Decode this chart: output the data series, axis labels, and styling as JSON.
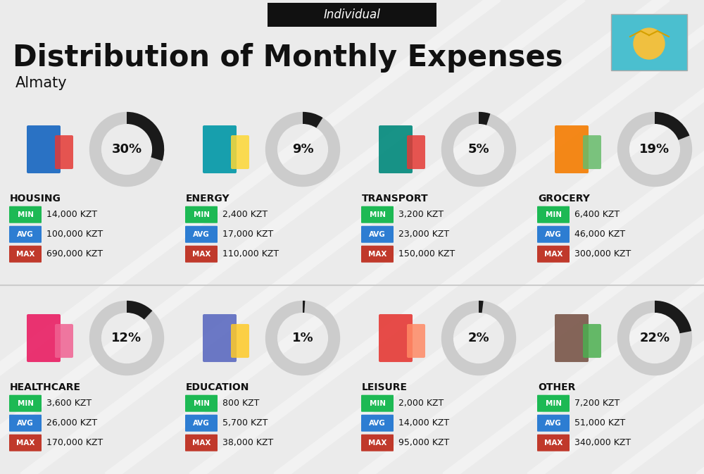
{
  "title": "Distribution of Monthly Expenses",
  "subtitle": "Individual",
  "city": "Almaty",
  "bg_color": "#ebebeb",
  "categories": [
    {
      "name": "HOUSING",
      "percent": 30,
      "min": "14,000 KZT",
      "avg": "100,000 KZT",
      "max": "690,000 KZT",
      "row": 0,
      "col": 0
    },
    {
      "name": "ENERGY",
      "percent": 9,
      "min": "2,400 KZT",
      "avg": "17,000 KZT",
      "max": "110,000 KZT",
      "row": 0,
      "col": 1
    },
    {
      "name": "TRANSPORT",
      "percent": 5,
      "min": "3,200 KZT",
      "avg": "23,000 KZT",
      "max": "150,000 KZT",
      "row": 0,
      "col": 2
    },
    {
      "name": "GROCERY",
      "percent": 19,
      "min": "6,400 KZT",
      "avg": "46,000 KZT",
      "max": "300,000 KZT",
      "row": 0,
      "col": 3
    },
    {
      "name": "HEALTHCARE",
      "percent": 12,
      "min": "3,600 KZT",
      "avg": "26,000 KZT",
      "max": "170,000 KZT",
      "row": 1,
      "col": 0
    },
    {
      "name": "EDUCATION",
      "percent": 1,
      "min": "800 KZT",
      "avg": "5,700 KZT",
      "max": "38,000 KZT",
      "row": 1,
      "col": 1
    },
    {
      "name": "LEISURE",
      "percent": 2,
      "min": "2,000 KZT",
      "avg": "14,000 KZT",
      "max": "95,000 KZT",
      "row": 1,
      "col": 2
    },
    {
      "name": "OTHER",
      "percent": 22,
      "min": "7,200 KZT",
      "avg": "51,000 KZT",
      "max": "340,000 KZT",
      "row": 1,
      "col": 3
    }
  ],
  "min_color": "#1db954",
  "avg_color": "#2d7dd2",
  "max_color": "#c0392b",
  "text_color": "#111111",
  "donut_active": "#1a1a1a",
  "donut_inactive": "#cccccc",
  "header_bg": "#111111",
  "header_text": "#ffffff",
  "flag_color": "#4bbfcf",
  "flag_sun": "#f0c040",
  "diag_line_color": "#ffffff",
  "sep_color": "#cccccc"
}
